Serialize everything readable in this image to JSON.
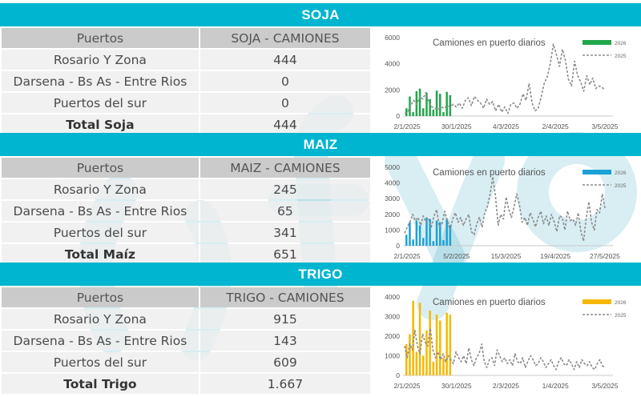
{
  "sections": [
    {
      "id": "soja",
      "title": "SOJA",
      "header": {
        "col1": "Puertos",
        "col2": "SOJA - CAMIONES"
      },
      "rows": [
        {
          "label": "Rosario Y Zona",
          "value": "444"
        },
        {
          "label": "Darsena - Bs As - Entre Rios",
          "value": "0"
        },
        {
          "label": "Puertos del sur",
          "value": "0"
        }
      ],
      "total": {
        "label": "Total Soja",
        "value": "444"
      }
    },
    {
      "id": "maiz",
      "title": "MAIZ",
      "header": {
        "col1": "Puertos",
        "col2": "MAIZ - CAMIONES"
      },
      "rows": [
        {
          "label": "Rosario Y Zona",
          "value": "245"
        },
        {
          "label": "Darsena - Bs As - Entre Rios",
          "value": "65"
        },
        {
          "label": "Puertos del sur",
          "value": "341"
        }
      ],
      "total": {
        "label": "Total Maíz",
        "value": "651"
      }
    },
    {
      "id": "trigo",
      "title": "TRIGO",
      "header": {
        "col1": "Puertos",
        "col2": "TRIGO - CAMIONES"
      },
      "rows": [
        {
          "label": "Rosario Y Zona",
          "value": "915"
        },
        {
          "label": "Darsena - Bs As - Entre Rios",
          "value": "143"
        },
        {
          "label": "Puertos del sur",
          "value": "609"
        }
      ],
      "total": {
        "label": "Total Trigo",
        "value": "1.667"
      }
    }
  ],
  "chart_data": [
    {
      "type": "bar+line",
      "title": "Camiones en puerto diarios",
      "ylim": [
        0,
        6000
      ],
      "yticks": [
        "0",
        "2000",
        "4000",
        "6000"
      ],
      "xticks": [
        "2/1/2025",
        "30/1/2025",
        "4/3/2025",
        "2/4/2025",
        "3/5/2025"
      ],
      "legend": [
        "2026",
        "2025"
      ],
      "legend_position": "top-right",
      "bar_color": "#22a64a",
      "line_color": "#8c8c8c",
      "series": [
        {
          "name": "2026",
          "kind": "bar",
          "values": [
            600,
            1500,
            300,
            1900,
            2100,
            600,
            1800,
            1300,
            500,
            1950,
            1700,
            300,
            1850,
            1600
          ]
        },
        {
          "name": "2025",
          "kind": "line",
          "values": [
            200,
            300,
            800,
            1200,
            900,
            1500,
            1300,
            1800,
            1000,
            700,
            600,
            500,
            700,
            600,
            800,
            700,
            900,
            700,
            1000,
            600,
            1200,
            1400,
            800,
            1500,
            1200,
            1000,
            600,
            1300,
            900,
            1100,
            400,
            900,
            300,
            700,
            200,
            900,
            1000,
            600,
            900,
            1700,
            1200,
            2500,
            1000,
            400,
            600,
            1500,
            2500,
            3000,
            4000,
            5500,
            4700,
            3800,
            5100,
            4200,
            2800,
            2300,
            4200,
            3100,
            2600,
            1900,
            3100,
            2400,
            2900,
            2100,
            2300,
            2200,
            2000
          ]
        }
      ]
    },
    {
      "type": "bar+line",
      "title": "Camiones en puerto diarios",
      "ylim": [
        0,
        5000
      ],
      "yticks": [
        "0",
        "1000",
        "2000",
        "3000",
        "4000",
        "5000"
      ],
      "xticks": [
        "2/1/2025",
        "5/2/2025",
        "15/3/2025",
        "19/4/2025",
        "27/5/2025"
      ],
      "legend": [
        "2026",
        "2025"
      ],
      "legend_position": "top-right",
      "bar_color": "#1ba1d8",
      "line_color": "#8c8c8c",
      "series": [
        {
          "name": "2026",
          "kind": "bar",
          "values": [
            700,
            1500,
            400,
            1600,
            1300,
            500,
            1800,
            1700,
            300,
            1600,
            1500,
            350,
            1700,
            1300
          ]
        },
        {
          "name": "2025",
          "kind": "line",
          "values": [
            800,
            1200,
            1500,
            2000,
            1600,
            1800,
            1300,
            1900,
            1500,
            1700,
            1200,
            1900,
            2300,
            1200,
            1400,
            2200,
            1600,
            1000,
            1700,
            2100,
            1500,
            1800,
            1300,
            1700,
            2000,
            900,
            700,
            1400,
            1800,
            1200,
            2100,
            2500,
            3300,
            4400,
            3200,
            1300,
            2000,
            1700,
            3100,
            2300,
            1800,
            2500,
            3300,
            2600,
            1500,
            1800,
            1300,
            2100,
            1700,
            1200,
            1800,
            2200,
            1400,
            1900,
            1300,
            2000,
            1500,
            900,
            1900,
            1800,
            1000,
            2200,
            1600,
            1700,
            1300,
            2100,
            900,
            300,
            1800,
            2800,
            1500,
            1000,
            2300,
            2100,
            3300,
            2400
          ]
        }
      ]
    },
    {
      "type": "bar+line",
      "title": "Camiones en puerto diarios",
      "ylim": [
        0,
        4000
      ],
      "yticks": [
        "0",
        "1000",
        "2000",
        "3000",
        "4000"
      ],
      "xticks": [
        "2/1/2025",
        "30/1/2025",
        "2/3/2025",
        "1/4/2025",
        "3/5/2025"
      ],
      "legend": [
        "2026",
        "2025"
      ],
      "legend_position": "top-right",
      "bar_color": "#f5b800",
      "line_color": "#8c8c8c",
      "series": [
        {
          "name": "2026",
          "kind": "bar",
          "values": [
            1600,
            2100,
            3800,
            1200,
            3700,
            1000,
            2300,
            3300,
            700,
            3100,
            2800,
            900,
            3200,
            3100
          ]
        },
        {
          "name": "2025",
          "kind": "line",
          "values": [
            1500,
            900,
            1600,
            1300,
            2300,
            1500,
            1100,
            2100,
            1700,
            1500,
            2400,
            1300,
            900,
            1200,
            800,
            1100,
            700,
            1000,
            800,
            600,
            1200,
            900,
            700,
            1000,
            600,
            1400,
            800,
            500,
            900,
            1100,
            1600,
            700,
            400,
            800,
            900,
            500,
            1300,
            1000,
            700,
            900,
            600,
            800,
            500,
            1100,
            700,
            600,
            900,
            400,
            700,
            1000,
            800,
            500,
            600,
            900,
            700,
            400,
            600,
            800,
            500,
            300,
            700,
            900,
            600,
            500,
            800,
            600,
            300,
            700,
            400,
            800,
            600,
            500,
            700,
            400,
            300,
            600,
            800,
            500,
            400
          ]
        }
      ]
    }
  ]
}
